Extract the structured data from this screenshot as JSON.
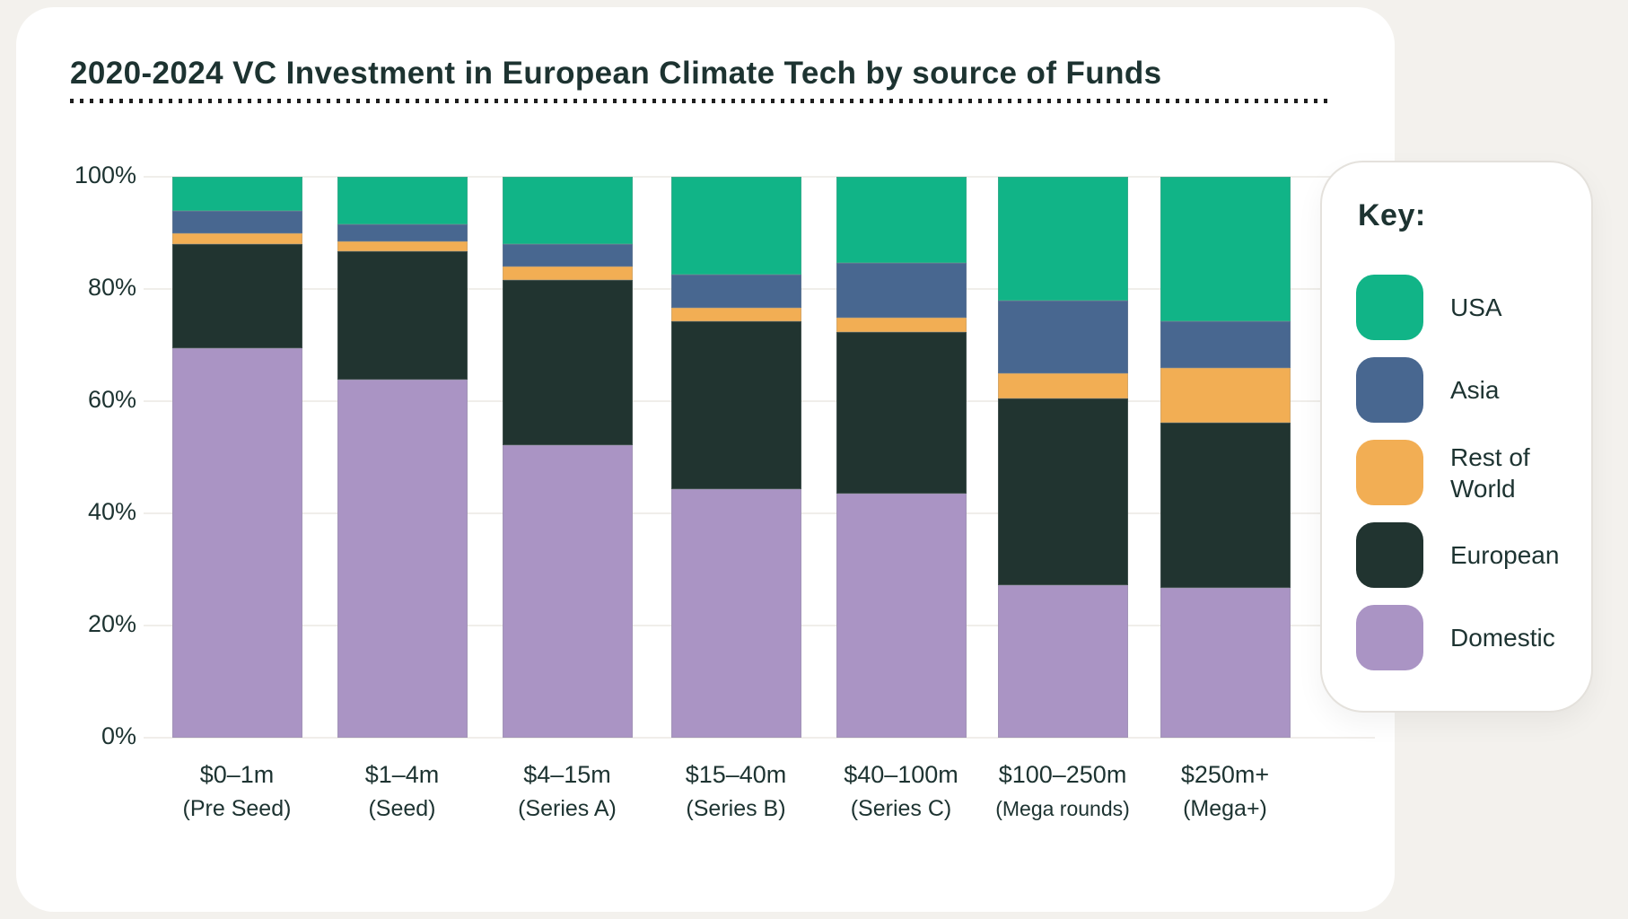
{
  "title": "2020-2024 VC Investment in European Climate Tech by source of Funds",
  "legend": {
    "title": "Key:",
    "items": [
      {
        "label": "USA",
        "color": "#11b487"
      },
      {
        "label": "Asia",
        "color": "#486790"
      },
      {
        "label": "Rest of World",
        "color": "#f2ae54"
      },
      {
        "label": "European",
        "color": "#213430"
      },
      {
        "label": "Domestic",
        "color": "#aa94c4"
      }
    ]
  },
  "chart_data": {
    "type": "bar",
    "stacked": true,
    "unit": "percent",
    "title": "2020-2024 VC Investment in European Climate Tech by source of Funds",
    "categories": [
      "$0–1m",
      "$1–4m",
      "$4–15m",
      "$15–40m",
      "$40–100m",
      "$100–250m",
      "$250m+"
    ],
    "category_stages": [
      "(Pre Seed)",
      "(Seed)",
      "(Series A)",
      "(Series B)",
      "(Series C)",
      "(Mega rounds)",
      "(Mega+)"
    ],
    "series": [
      {
        "name": "Domestic",
        "color": "#aa94c4",
        "values": [
          69.5,
          63.8,
          52.2,
          44.3,
          43.5,
          27.2,
          26.7
        ]
      },
      {
        "name": "European",
        "color": "#213430",
        "values": [
          18.5,
          23.0,
          29.4,
          29.9,
          28.8,
          33.3,
          29.4
        ]
      },
      {
        "name": "Rest of World",
        "color": "#f2ae54",
        "values": [
          2.0,
          1.7,
          2.4,
          2.4,
          2.6,
          4.5,
          9.8
        ]
      },
      {
        "name": "Asia",
        "color": "#486790",
        "values": [
          4.0,
          3.0,
          4.0,
          6.0,
          9.8,
          13.0,
          8.3
        ]
      },
      {
        "name": "USA",
        "color": "#11b487",
        "values": [
          6.0,
          8.5,
          12.0,
          17.4,
          15.3,
          22.0,
          25.8
        ]
      }
    ],
    "ylim": [
      0,
      100
    ],
    "yticks": [
      "0%",
      "20%",
      "40%",
      "60%",
      "80%",
      "100%"
    ],
    "xlabel": "",
    "ylabel": "",
    "grid": true,
    "legend_position": "right"
  },
  "colors": {
    "background": "#f3f1ed",
    "card": "#ffffff",
    "text": "#1d3331",
    "gridline": "#f0eeea",
    "legend_border": "#e4e1dc"
  }
}
